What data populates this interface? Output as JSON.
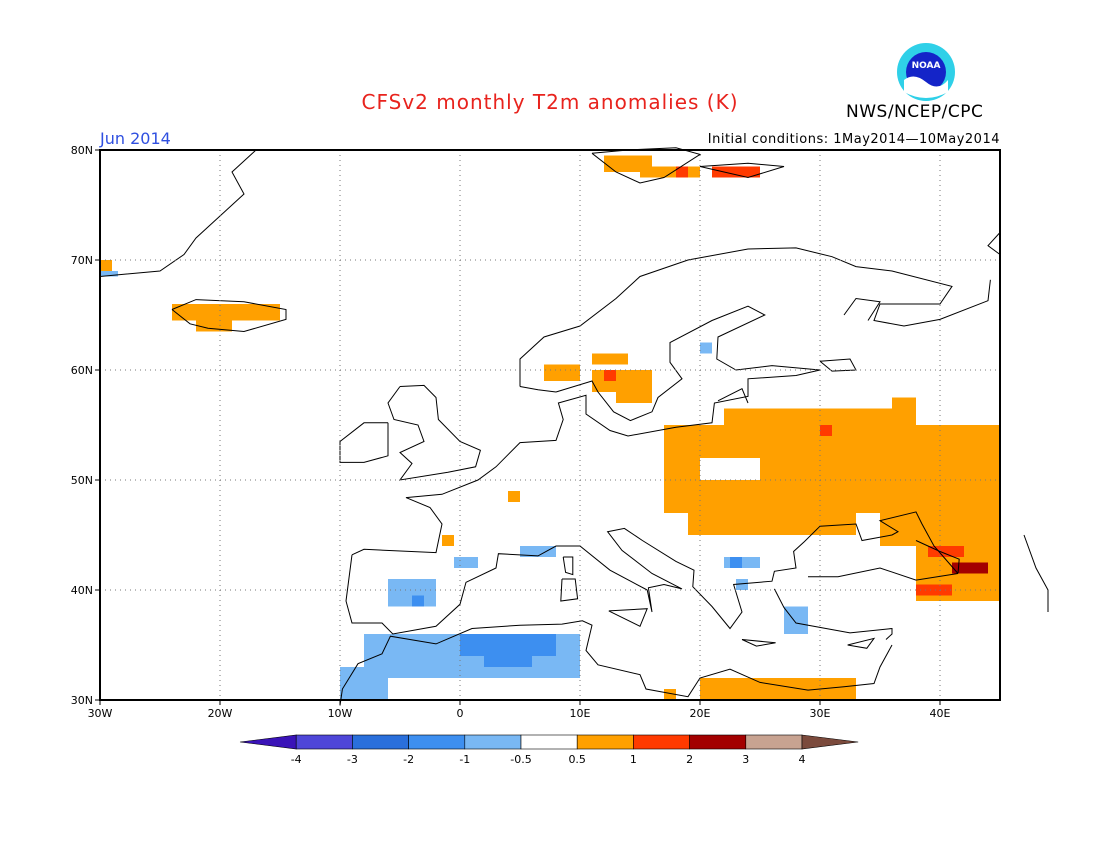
{
  "header": {
    "title": "CFSv2 monthly T2m anomalies (K)",
    "organization": "NWS/NCEP/CPC",
    "logo_text": "NOAA",
    "valid_month": "Jun 2014",
    "initial_conditions": "Initial conditions: 1May2014—10May2014"
  },
  "map": {
    "projection": "lat-lon",
    "lon_range": [
      -30,
      45
    ],
    "lat_range": [
      30,
      80
    ],
    "gridlines": "dotted",
    "lat_labels": [
      "80N",
      "70N",
      "60N",
      "50N",
      "40N",
      "30N"
    ],
    "lon_labels": [
      "30W",
      "20W",
      "10W",
      "0",
      "10E",
      "20E",
      "30E",
      "40E"
    ],
    "warm_regions": [
      {
        "name": "Svalbard",
        "lon": [
          12,
          25
        ],
        "lat": [
          78,
          79.5
        ],
        "category": "0.5 to 1"
      },
      {
        "name": "Iceland",
        "lon": [
          -24,
          -15
        ],
        "lat": [
          63.5,
          66
        ],
        "category": "0.5 to 1"
      },
      {
        "name": "Southern Scandinavia",
        "lon": [
          7,
          16
        ],
        "lat": [
          58,
          61
        ],
        "category": "0.5 to 1"
      },
      {
        "name": "Eastern Europe / Western Russia",
        "lon": [
          16,
          45
        ],
        "lat": [
          44,
          57
        ],
        "category": "0.5 to 1"
      },
      {
        "name": "Caucasus",
        "lon": [
          38,
          45
        ],
        "lat": [
          39,
          44
        ],
        "category": "2 to 3"
      },
      {
        "name": "Southeastern Mediterranean",
        "lon": [
          17,
          33
        ],
        "lat": [
          30,
          32
        ],
        "category": "0.5 to 1"
      }
    ],
    "cool_regions": [
      {
        "name": "North Africa (Atlas)",
        "lon": [
          -8,
          10
        ],
        "lat": [
          31,
          36.5
        ],
        "category": "-2 to -1"
      },
      {
        "name": "Iberia",
        "lon": [
          -6,
          -2
        ],
        "lat": [
          38.5,
          41
        ],
        "category": "-1 to -0.5"
      },
      {
        "name": "Balkans",
        "lon": [
          22,
          27
        ],
        "lat": [
          37,
          42
        ],
        "category": "-1 to -0.5"
      }
    ]
  },
  "colorbar": {
    "labels": [
      "-4",
      "-3",
      "-2",
      "-1",
      "-0.5",
      "0.5",
      "1",
      "2",
      "3",
      "4"
    ],
    "colors": [
      "#3a13b8",
      "#4e46d8",
      "#2a6fdb",
      "#3d8ff0",
      "#79b8f4",
      "#ffffff",
      "#ffa000",
      "#ff3a00",
      "#a30000",
      "#c8a391",
      "#7b4a3c"
    ]
  },
  "chart_data": {
    "type": "heatmap",
    "title": "CFSv2 monthly T2m anomalies (K)",
    "subtitle": "Jun 2014",
    "xlabel": "",
    "ylabel": "",
    "xlim": [
      -30,
      45
    ],
    "ylim": [
      30,
      80
    ],
    "levels": [
      -4,
      -3,
      -2,
      -1,
      -0.5,
      0.5,
      1,
      2,
      3,
      4
    ]
  }
}
